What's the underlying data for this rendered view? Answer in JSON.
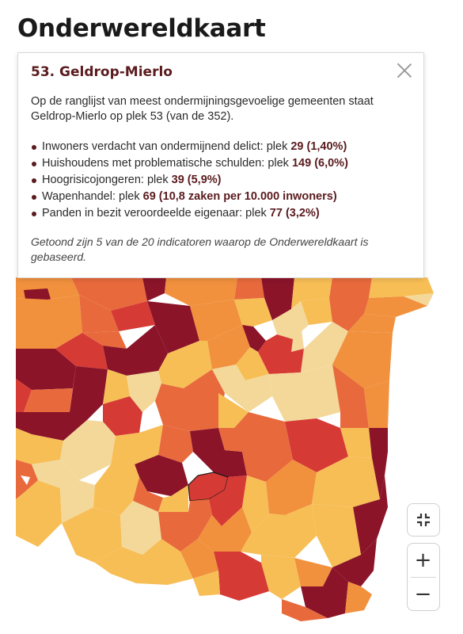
{
  "page": {
    "title": "Onderwereldkaart"
  },
  "panel": {
    "title": "53. Geldrop-Mierlo",
    "intro": "Op de ranglijst van meest ondermijningsgevoelige gemeenten staat Geldrop-Mierlo op plek 53 (van de 352).",
    "indicators": [
      {
        "label": "Inwoners verdacht van ondermijnend delict: plek ",
        "value": "29 (1,40%)"
      },
      {
        "label": "Huishoudens met problematische schulden: plek ",
        "value": "149 (6,0%)"
      },
      {
        "label": "Hoogrisicojongeren: plek ",
        "value": "39 (5,9%)"
      },
      {
        "label": "Wapenhandel: plek ",
        "value": "69 (10,8 zaken per 10.000 inwoners)"
      },
      {
        "label": "Panden in bezit veroordeelde eigenaar: plek ",
        "value": "77 (3,2%)"
      }
    ],
    "footnote": "Getoond zijn 5 van de 20 indicatoren waarop de Onderwereldkaart is gebaseerd.",
    "close_icon": "close-icon"
  },
  "controls": {
    "fullscreen_icon": "fullscreen-exit-icon",
    "zoom_in_label": "+",
    "zoom_out_label": "−"
  },
  "map": {
    "legend_colors": [
      "#8b1429",
      "#d63a35",
      "#e86a3c",
      "#f1913e",
      "#f7be55",
      "#f3d89a"
    ],
    "selected": "Geldrop-Mierlo"
  }
}
